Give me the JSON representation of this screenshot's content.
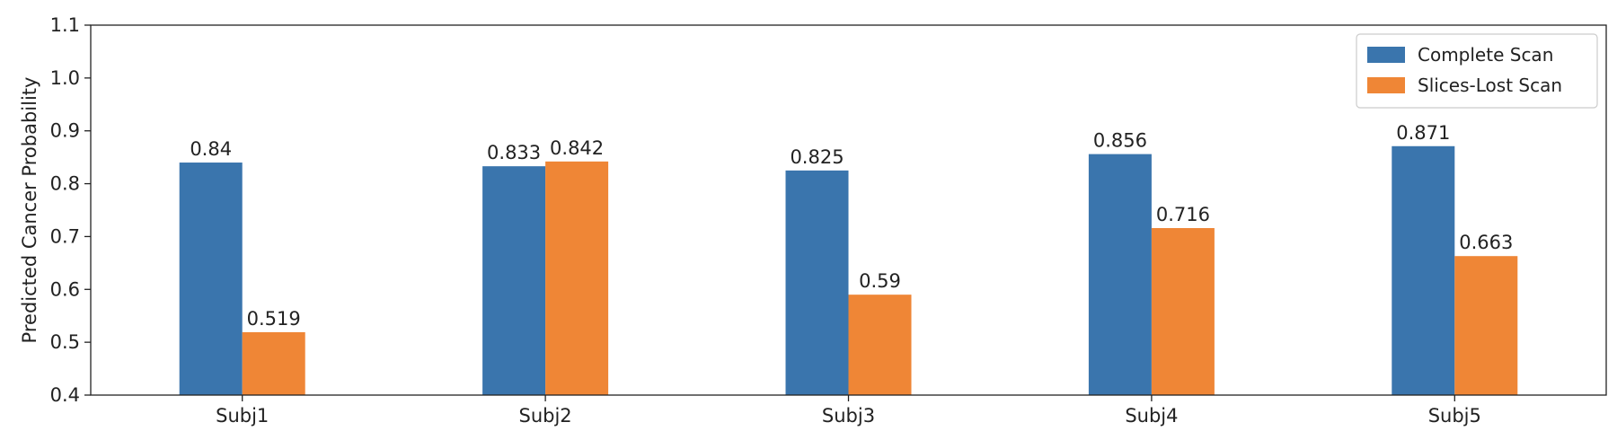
{
  "chart_data": {
    "type": "bar",
    "ylabel": "Predicted Cancer Probability",
    "ylim": [
      0.4,
      1.1
    ],
    "yticks": [
      "0.4",
      "0.5",
      "0.6",
      "0.7",
      "0.8",
      "0.9",
      "1.0",
      "1.1"
    ],
    "categories": [
      "Subj1",
      "Subj2",
      "Subj3",
      "Subj4",
      "Subj5"
    ],
    "series": [
      {
        "name": "Complete Scan",
        "color": "#3a75ad",
        "values": [
          0.84,
          0.833,
          0.825,
          0.856,
          0.871
        ],
        "labels": [
          "0.84",
          "0.833",
          "0.825",
          "0.856",
          "0.871"
        ]
      },
      {
        "name": "Slices-Lost Scan",
        "color": "#ef8636",
        "values": [
          0.519,
          0.842,
          0.59,
          0.716,
          0.663
        ],
        "labels": [
          "0.519",
          "0.842",
          "0.59",
          "0.716",
          "0.663"
        ]
      }
    ],
    "legend_position": "top-right",
    "grid": false
  }
}
